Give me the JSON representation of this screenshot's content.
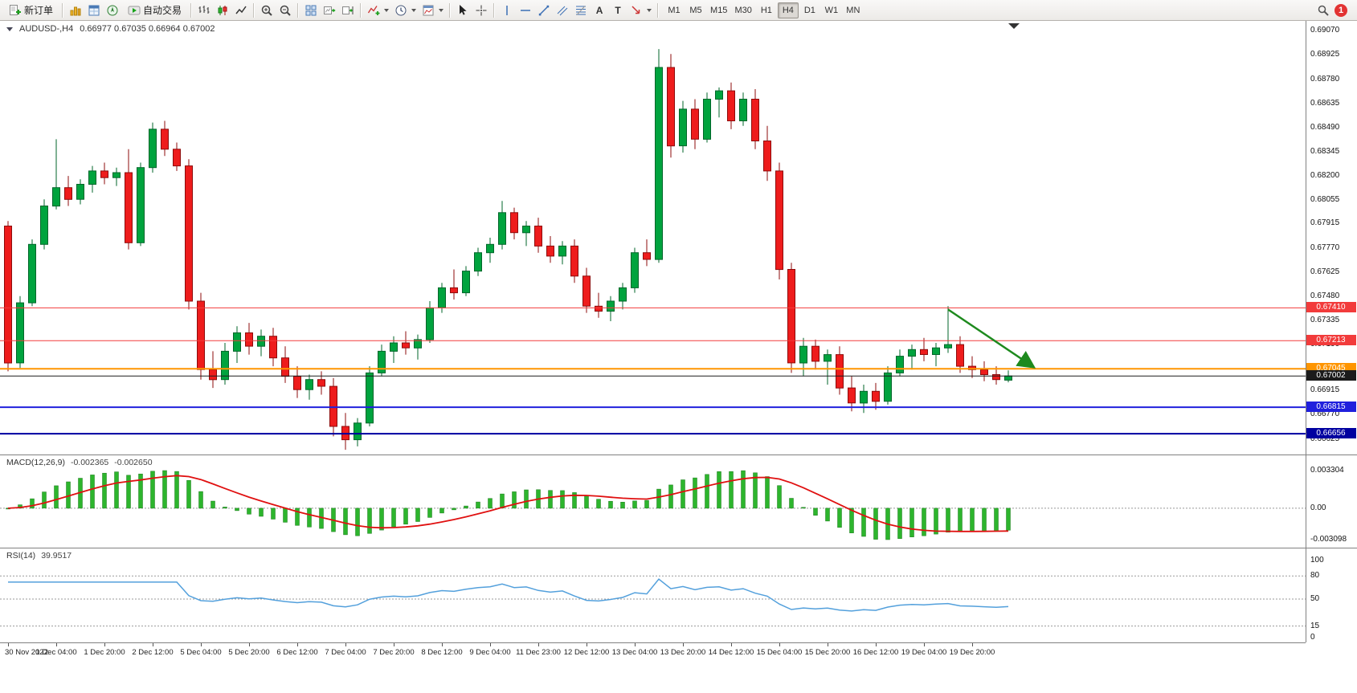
{
  "toolbar": {
    "new_order_label": "新订单",
    "autotrading_label": "自动交易",
    "text_tool_glyph": "A",
    "label_tool_glyph": "T",
    "timeframes": [
      "M1",
      "M5",
      "M15",
      "M30",
      "H1",
      "H4",
      "D1",
      "W1",
      "MN"
    ],
    "active_timeframe": "H4",
    "notification_count": "1"
  },
  "chart": {
    "symbol_period": "AUDUSD-,H4",
    "ohlc": "0.66977 0.67035 0.66964 0.67002"
  },
  "colors": {
    "bull": "#00a33e",
    "bull_edge": "#00662a",
    "bear": "#ee1c1c",
    "bear_edge": "#8e0b0b"
  },
  "chart_data": {
    "type": "candlestick",
    "symbol": "AUDUSD",
    "timeframe": "H4",
    "price_axis_ticks": [
      "0.69070",
      "0.68925",
      "0.68780",
      "0.68635",
      "0.68490",
      "0.68345",
      "0.68200",
      "0.68055",
      "0.67915",
      "0.67770",
      "0.67625",
      "0.67480",
      "0.67335",
      "0.67190",
      "0.67045",
      "0.66915",
      "0.66770",
      "0.66625"
    ],
    "time_axis_labels": [
      "30 Nov 2022",
      "1 Dec 04:00",
      "1 Dec 20:00",
      "2 Dec 12:00",
      "5 Dec 04:00",
      "5 Dec 20:00",
      "6 Dec 12:00",
      "7 Dec 04:00",
      "7 Dec 20:00",
      "8 Dec 12:00",
      "9 Dec 04:00",
      "11 Dec 23:00",
      "12 Dec 12:00",
      "13 Dec 04:00",
      "13 Dec 20:00",
      "14 Dec 12:00",
      "15 Dec 04:00",
      "15 Dec 20:00",
      "16 Dec 12:00",
      "19 Dec 04:00",
      "19 Dec 20:00"
    ],
    "candles": [
      [
        0.679,
        0.6793,
        0.6703,
        0.6708
      ],
      [
        0.6708,
        0.6748,
        0.6705,
        0.6744
      ],
      [
        0.6744,
        0.6782,
        0.6742,
        0.6779
      ],
      [
        0.6779,
        0.6806,
        0.6776,
        0.6802
      ],
      [
        0.6802,
        0.6842,
        0.68,
        0.6813
      ],
      [
        0.6813,
        0.682,
        0.6802,
        0.6806
      ],
      [
        0.6806,
        0.6818,
        0.6803,
        0.6815
      ],
      [
        0.6815,
        0.6826,
        0.681,
        0.6823
      ],
      [
        0.6823,
        0.6828,
        0.6815,
        0.6819
      ],
      [
        0.6819,
        0.6825,
        0.6814,
        0.6822
      ],
      [
        0.6822,
        0.6836,
        0.6776,
        0.678
      ],
      [
        0.678,
        0.6828,
        0.6778,
        0.6825
      ],
      [
        0.6825,
        0.6852,
        0.6822,
        0.6848
      ],
      [
        0.6848,
        0.6853,
        0.6832,
        0.6836
      ],
      [
        0.6836,
        0.684,
        0.6823,
        0.6826
      ],
      [
        0.6826,
        0.683,
        0.674,
        0.6745
      ],
      [
        0.6745,
        0.675,
        0.6698,
        0.6704
      ],
      [
        0.6704,
        0.6715,
        0.6693,
        0.6698
      ],
      [
        0.6698,
        0.672,
        0.6695,
        0.6715
      ],
      [
        0.6715,
        0.673,
        0.6708,
        0.6726
      ],
      [
        0.6726,
        0.6732,
        0.6713,
        0.6718
      ],
      [
        0.6718,
        0.6728,
        0.6712,
        0.6724
      ],
      [
        0.6724,
        0.6729,
        0.6706,
        0.6711
      ],
      [
        0.6711,
        0.6718,
        0.6696,
        0.67
      ],
      [
        0.67,
        0.6706,
        0.6687,
        0.6692
      ],
      [
        0.6692,
        0.6701,
        0.6686,
        0.6698
      ],
      [
        0.6698,
        0.6703,
        0.6689,
        0.6694
      ],
      [
        0.6694,
        0.6699,
        0.6664,
        0.667
      ],
      [
        0.667,
        0.6678,
        0.6656,
        0.6662
      ],
      [
        0.6662,
        0.6675,
        0.6658,
        0.6672
      ],
      [
        0.6672,
        0.6706,
        0.667,
        0.6702
      ],
      [
        0.6702,
        0.6719,
        0.67,
        0.6715
      ],
      [
        0.6715,
        0.6724,
        0.6708,
        0.672
      ],
      [
        0.672,
        0.6727,
        0.6713,
        0.6717
      ],
      [
        0.6717,
        0.6725,
        0.671,
        0.6722
      ],
      [
        0.6722,
        0.6745,
        0.672,
        0.6741
      ],
      [
        0.6741,
        0.6756,
        0.6738,
        0.6753
      ],
      [
        0.6753,
        0.6764,
        0.6746,
        0.675
      ],
      [
        0.675,
        0.6766,
        0.6748,
        0.6763
      ],
      [
        0.6763,
        0.6777,
        0.676,
        0.6774
      ],
      [
        0.6774,
        0.6783,
        0.6768,
        0.6779
      ],
      [
        0.6779,
        0.6805,
        0.6776,
        0.6798
      ],
      [
        0.6798,
        0.6801,
        0.6782,
        0.6786
      ],
      [
        0.6786,
        0.6793,
        0.6778,
        0.679
      ],
      [
        0.679,
        0.6795,
        0.6774,
        0.6778
      ],
      [
        0.6778,
        0.6784,
        0.6768,
        0.6772
      ],
      [
        0.6772,
        0.6781,
        0.6767,
        0.6778
      ],
      [
        0.6778,
        0.6782,
        0.6756,
        0.676
      ],
      [
        0.676,
        0.6765,
        0.6738,
        0.6742
      ],
      [
        0.6742,
        0.675,
        0.6735,
        0.6739
      ],
      [
        0.6739,
        0.6748,
        0.6733,
        0.6745
      ],
      [
        0.6745,
        0.6756,
        0.674,
        0.6753
      ],
      [
        0.6753,
        0.6777,
        0.675,
        0.6774
      ],
      [
        0.6774,
        0.6782,
        0.6766,
        0.677
      ],
      [
        0.677,
        0.6896,
        0.6768,
        0.6885
      ],
      [
        0.6885,
        0.6893,
        0.6831,
        0.6838
      ],
      [
        0.6838,
        0.6865,
        0.6834,
        0.686
      ],
      [
        0.686,
        0.6866,
        0.6836,
        0.6842
      ],
      [
        0.6842,
        0.687,
        0.684,
        0.6866
      ],
      [
        0.6866,
        0.6873,
        0.6855,
        0.6871
      ],
      [
        0.6871,
        0.6876,
        0.6848,
        0.6853
      ],
      [
        0.6853,
        0.687,
        0.685,
        0.6866
      ],
      [
        0.6866,
        0.6872,
        0.6836,
        0.6841
      ],
      [
        0.6841,
        0.685,
        0.6817,
        0.6823
      ],
      [
        0.6823,
        0.6828,
        0.6758,
        0.6764
      ],
      [
        0.6764,
        0.6768,
        0.6702,
        0.6708
      ],
      [
        0.6708,
        0.6723,
        0.67,
        0.6718
      ],
      [
        0.6718,
        0.6722,
        0.6704,
        0.6709
      ],
      [
        0.6709,
        0.6716,
        0.6695,
        0.6713
      ],
      [
        0.6713,
        0.6718,
        0.6689,
        0.6693
      ],
      [
        0.6693,
        0.67,
        0.6679,
        0.6684
      ],
      [
        0.6684,
        0.6695,
        0.6678,
        0.6691
      ],
      [
        0.6691,
        0.6696,
        0.668,
        0.6685
      ],
      [
        0.6685,
        0.6706,
        0.6683,
        0.6702
      ],
      [
        0.6702,
        0.6716,
        0.67,
        0.6712
      ],
      [
        0.6712,
        0.6719,
        0.6704,
        0.6716
      ],
      [
        0.6716,
        0.6723,
        0.6709,
        0.6713
      ],
      [
        0.6713,
        0.672,
        0.6706,
        0.6717
      ],
      [
        0.6717,
        0.6742,
        0.6714,
        0.6719
      ],
      [
        0.6719,
        0.6724,
        0.6702,
        0.6706
      ],
      [
        0.6706,
        0.6712,
        0.6699,
        0.6704
      ],
      [
        0.6704,
        0.6709,
        0.6697,
        0.6701
      ],
      [
        0.6701,
        0.6706,
        0.6695,
        0.6698
      ],
      [
        0.66977,
        0.67035,
        0.66964,
        0.67002
      ]
    ],
    "horizontal_lines": [
      {
        "price": 0.6741,
        "label": "0.67410",
        "color": "#f23b3b",
        "width": 1
      },
      {
        "price": 0.67213,
        "label": "0.67213",
        "color": "#f23b3b",
        "width": 1
      },
      {
        "price": 0.67045,
        "label": "0.67045",
        "color": "#ff9500",
        "width": 2
      },
      {
        "price": 0.67002,
        "label": "0.67002",
        "color": "#1b1b1b",
        "width": 1
      },
      {
        "price": 0.66815,
        "label": "0.66815",
        "color": "#2020dd",
        "width": 2
      },
      {
        "price": 0.66656,
        "label": "0.66656",
        "color": "#0000a0",
        "width": 2
      }
    ],
    "annotation_arrow": {
      "from_candle": 78,
      "from_price": 0.674,
      "to_candle": 85,
      "to_price": 0.6706,
      "color": "#1e8a1e"
    },
    "macd": {
      "label": "MACD(12,26,9)",
      "value_main": "-0.002365",
      "value_signal": "-0.002650",
      "axis_labels": [
        "0.003304",
        "0.00",
        "-0.003098"
      ],
      "fast": 12,
      "slow": 26,
      "signal": 9,
      "histogram_color": "#2db52d",
      "histogram_edge": "#1a7a1a",
      "signal_color": "#e01010"
    },
    "rsi": {
      "label": "RSI(14)",
      "value": "39.9517",
      "period": 14,
      "axis_labels": [
        "100",
        "80",
        "50",
        "15",
        "0"
      ],
      "levels": [
        80,
        50,
        15
      ],
      "line_color": "#53a0dc"
    }
  }
}
